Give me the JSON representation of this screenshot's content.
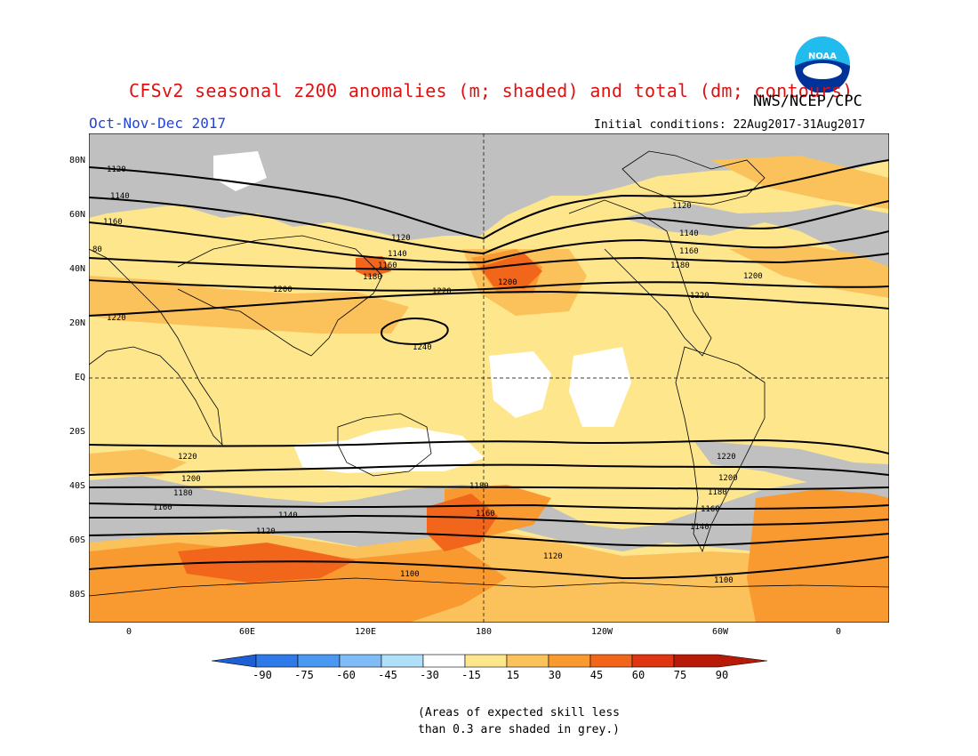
{
  "title": "CFSv2 seasonal z200 anomalies (m; shaded) and total (dm; contours)",
  "agency": "NWS/NCEP/CPC",
  "logo_text": "NOAA",
  "period": "Oct-Nov-Dec 2017",
  "initial_conditions": "Initial conditions: 22Aug2017-31Aug2017",
  "lat_labels": [
    "80N",
    "60N",
    "40N",
    "20N",
    "EQ",
    "20S",
    "40S",
    "60S",
    "80S"
  ],
  "lon_labels": [
    "0",
    "60E",
    "120E",
    "180",
    "120W",
    "60W",
    "0"
  ],
  "colorbar": {
    "ticks": [
      "-90",
      "-75",
      "-60",
      "-45",
      "-30",
      "-15",
      "15",
      "30",
      "45",
      "60",
      "75",
      "90"
    ],
    "colors": [
      "#1e5fd6",
      "#2e7ae8",
      "#4a98f0",
      "#7fbcf5",
      "#b0e0f8",
      "#ffffff",
      "#fde68c",
      "#fbc15a",
      "#f89a30",
      "#f2661c",
      "#e03512",
      "#b81a0a"
    ]
  },
  "contour_labels": [
    "1120",
    "1140",
    "1160",
    "80",
    "1120",
    "1140",
    "1160",
    "1180",
    "1200",
    "1220",
    "1240",
    "1120",
    "1140",
    "1160",
    "1180",
    "1200",
    "1220",
    "1200",
    "1220",
    "1220",
    "1200",
    "1180",
    "1160",
    "1140",
    "1120",
    "1100",
    "1180",
    "1160",
    "1220",
    "1200",
    "1180",
    "1160",
    "1140",
    "1120",
    "1100"
  ],
  "note_line1": "(Areas of expected skill less",
  "note_line2": "than 0.3 are shaded in grey.)",
  "colors": {
    "title": "#dd1111",
    "period": "#2244dd",
    "grey": "#c0c0c0"
  }
}
